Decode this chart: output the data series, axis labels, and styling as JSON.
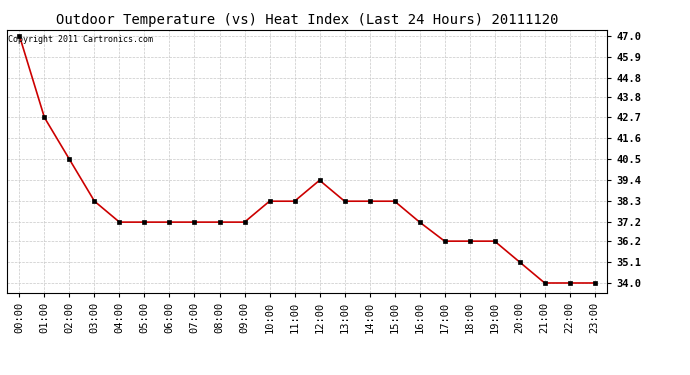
{
  "title": "Outdoor Temperature (vs) Heat Index (Last 24 Hours) 20111120",
  "copyright_text": "Copyright 2011 Cartronics.com",
  "x_labels": [
    "00:00",
    "01:00",
    "02:00",
    "03:00",
    "04:00",
    "05:00",
    "06:00",
    "07:00",
    "08:00",
    "09:00",
    "10:00",
    "11:00",
    "12:00",
    "13:00",
    "14:00",
    "15:00",
    "16:00",
    "17:00",
    "18:00",
    "19:00",
    "20:00",
    "21:00",
    "22:00",
    "23:00"
  ],
  "y_values": [
    47.0,
    42.7,
    40.5,
    38.3,
    37.2,
    37.2,
    37.2,
    37.2,
    37.2,
    37.2,
    38.3,
    38.3,
    39.4,
    38.3,
    38.3,
    38.3,
    37.2,
    36.2,
    36.2,
    36.2,
    35.1,
    34.0,
    34.0,
    34.0
  ],
  "y_ticks": [
    34.0,
    35.1,
    36.2,
    37.2,
    38.3,
    39.4,
    40.5,
    41.6,
    42.7,
    43.8,
    44.8,
    45.9,
    47.0
  ],
  "y_min": 33.5,
  "y_max": 47.3,
  "line_color": "#cc0000",
  "marker_color": "#000000",
  "background_color": "#ffffff",
  "plot_bg_color": "#ffffff",
  "grid_color": "#c8c8c8",
  "title_fontsize": 10,
  "copyright_fontsize": 6,
  "tick_fontsize": 7.5
}
